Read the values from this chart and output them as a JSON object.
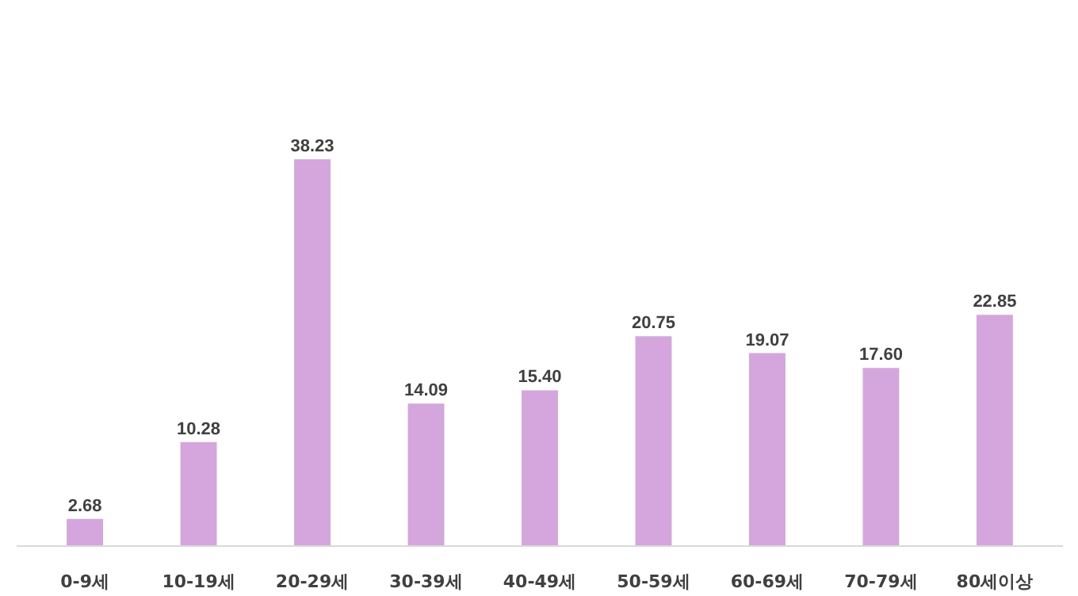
{
  "chart_data": {
    "type": "bar",
    "categories": [
      "0-9세",
      "10-19세",
      "20-29세",
      "30-39세",
      "40-49세",
      "50-59세",
      "60-69세",
      "70-79세",
      "80세이상"
    ],
    "values": [
      2.68,
      10.28,
      38.23,
      14.09,
      15.4,
      20.75,
      19.07,
      17.6,
      22.85
    ],
    "value_labels": [
      "2.68",
      "10.28",
      "38.23",
      "14.09",
      "15.40",
      "20.75",
      "19.07",
      "17.60",
      "22.85"
    ],
    "color": "#d5a6de"
  }
}
